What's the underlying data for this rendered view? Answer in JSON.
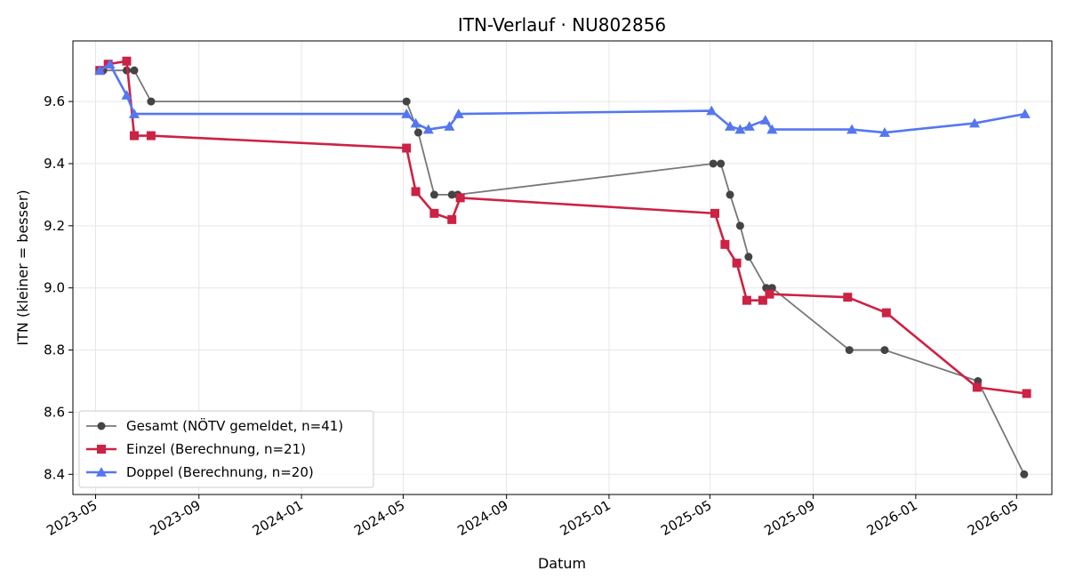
{
  "chart_data": {
    "type": "line",
    "title": "ITN-Verlauf · NU802856",
    "xlabel": "Datum",
    "ylabel": "ITN  (kleiner = besser)",
    "xlim": [
      "2023-04-04",
      "2026-06-12"
    ],
    "ylim": [
      8.335,
      9.795
    ],
    "x_ticks": [
      "2023-05",
      "2023-09",
      "2024-01",
      "2024-05",
      "2024-09",
      "2025-01",
      "2025-05",
      "2025-09",
      "2026-01",
      "2026-05"
    ],
    "y_ticks": [
      8.4,
      8.6,
      8.8,
      9.0,
      9.2,
      9.4,
      9.6
    ],
    "grid": true,
    "legend_position": "lower-left",
    "series": [
      {
        "name": "Gesamt (NÖTV gemeldet, n=41)",
        "color": "#444444",
        "line_color": "#777777",
        "marker": "circle",
        "points": [
          [
            "2023-05-06",
            9.7
          ],
          [
            "2023-05-10",
            9.7
          ],
          [
            "2023-06-07",
            9.7
          ],
          [
            "2023-06-16",
            9.7
          ],
          [
            "2023-07-06",
            9.6
          ],
          [
            "2024-05-05",
            9.6
          ],
          [
            "2024-05-19",
            9.5
          ],
          [
            "2024-06-07",
            9.3
          ],
          [
            "2024-06-28",
            9.3
          ],
          [
            "2024-07-05",
            9.3
          ],
          [
            "2025-05-05",
            9.4
          ],
          [
            "2025-05-14",
            9.4
          ],
          [
            "2025-05-25",
            9.3
          ],
          [
            "2025-06-06",
            9.2
          ],
          [
            "2025-06-16",
            9.1
          ],
          [
            "2025-07-07",
            9.0
          ],
          [
            "2025-07-14",
            9.0
          ],
          [
            "2025-10-14",
            8.8
          ],
          [
            "2025-11-25",
            8.8
          ],
          [
            "2026-03-16",
            8.7
          ],
          [
            "2026-05-10",
            8.4
          ]
        ]
      },
      {
        "name": "Einzel (Berechnung, n=21)",
        "color": "#cc2244",
        "marker": "square",
        "points": [
          [
            "2023-05-06",
            9.7
          ],
          [
            "2023-05-16",
            9.72
          ],
          [
            "2023-06-07",
            9.73
          ],
          [
            "2023-06-16",
            9.49
          ],
          [
            "2023-07-06",
            9.49
          ],
          [
            "2024-05-05",
            9.45
          ],
          [
            "2024-05-16",
            9.31
          ],
          [
            "2024-06-07",
            9.24
          ],
          [
            "2024-06-28",
            9.22
          ],
          [
            "2024-07-08",
            9.29
          ],
          [
            "2025-05-07",
            9.24
          ],
          [
            "2025-05-19",
            9.14
          ],
          [
            "2025-06-02",
            9.08
          ],
          [
            "2025-06-14",
            8.96
          ],
          [
            "2025-07-03",
            8.96
          ],
          [
            "2025-07-11",
            8.98
          ],
          [
            "2025-10-12",
            8.97
          ],
          [
            "2025-11-27",
            8.92
          ],
          [
            "2026-03-15",
            8.68
          ],
          [
            "2026-05-13",
            8.66
          ]
        ]
      },
      {
        "name": "Doppel (Berechnung, n=20)",
        "color": "#5577ee",
        "marker": "triangle",
        "points": [
          [
            "2023-05-06",
            9.7
          ],
          [
            "2023-05-18",
            9.72
          ],
          [
            "2023-06-07",
            9.62
          ],
          [
            "2023-06-16",
            9.56
          ],
          [
            "2024-05-05",
            9.56
          ],
          [
            "2024-05-16",
            9.53
          ],
          [
            "2024-05-31",
            9.51
          ],
          [
            "2024-06-25",
            9.52
          ],
          [
            "2024-07-06",
            9.56
          ],
          [
            "2025-05-03",
            9.57
          ],
          [
            "2025-05-25",
            9.52
          ],
          [
            "2025-06-06",
            9.51
          ],
          [
            "2025-06-17",
            9.52
          ],
          [
            "2025-07-06",
            9.54
          ],
          [
            "2025-07-14",
            9.51
          ],
          [
            "2025-10-17",
            9.51
          ],
          [
            "2025-11-25",
            9.5
          ],
          [
            "2026-03-12",
            9.53
          ],
          [
            "2026-05-11",
            9.56
          ]
        ]
      }
    ]
  }
}
